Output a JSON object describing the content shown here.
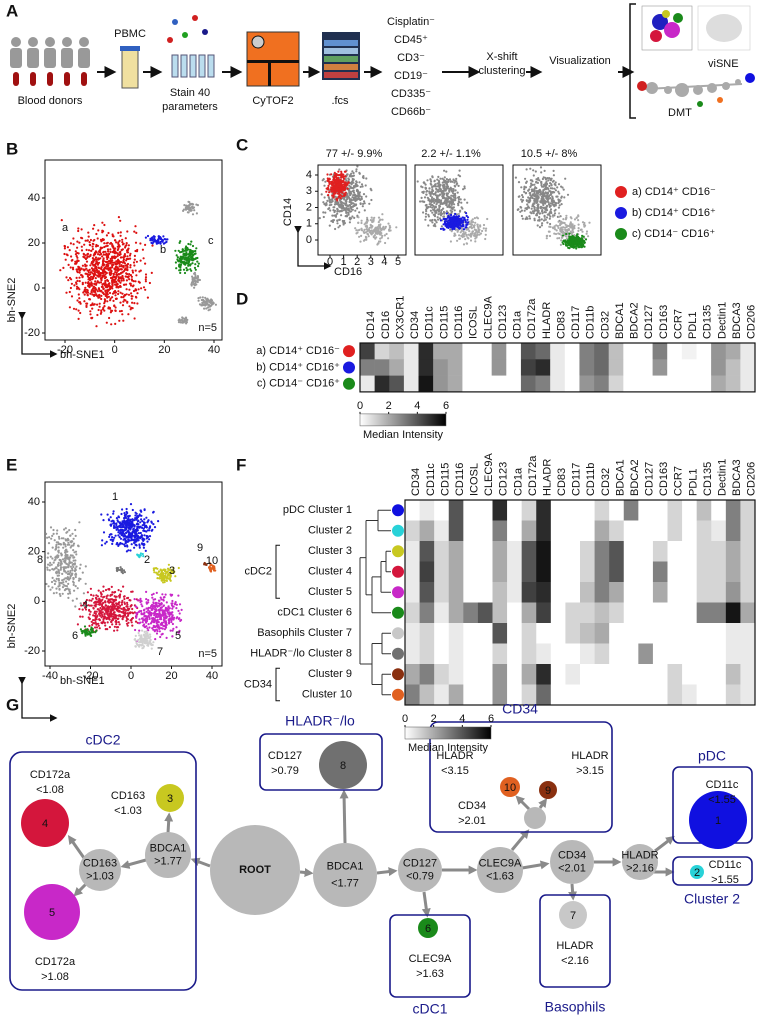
{
  "figure": {
    "A": {
      "label": "A",
      "donors": "Blood donors",
      "pbmc": "PBMC",
      "stain": [
        "Stain 40",
        "parameters"
      ],
      "cytof": "CyTOF2",
      "fcs": ".fcs",
      "gating": [
        "Cisplatin⁻",
        "CD45⁺",
        "CD3⁻",
        "CD19⁻",
        "CD335⁻",
        "CD66b⁻"
      ],
      "clustering": [
        "X-shift",
        "clustering"
      ],
      "visualization": "Visualization",
      "visne": "viSNE",
      "dmt": "DMT"
    },
    "B": {
      "label": "B",
      "x_label": "bh-SNE1",
      "y_label": "bh-SNE2",
      "xticks": [
        -20,
        0,
        20,
        40
      ],
      "yticks": [
        -20,
        0,
        20,
        40
      ],
      "note": "n=5",
      "cluster_labels": [
        "a",
        "b",
        "c"
      ]
    },
    "C": {
      "label": "C",
      "x_label": "CD16",
      "y_label": "CD14",
      "xticks": [
        0,
        1,
        2,
        3,
        4,
        5
      ],
      "yticks": [
        0,
        1,
        2,
        3,
        4
      ],
      "titles": [
        "77 +/- 9.9%",
        "2.2 +/- 1.1%",
        "10.5 +/- 8%"
      ],
      "populations": [
        {
          "name": "a) CD14⁺ CD16⁻",
          "color": "#e02020"
        },
        {
          "name": "b) CD14⁺ CD16⁺",
          "color": "#1a1ae0"
        },
        {
          "name": "c) CD14⁻ CD16⁺",
          "color": "#1a8a1a"
        }
      ]
    },
    "D": {
      "label": "D",
      "markers": [
        "CD14",
        "CD16",
        "CX3CR1",
        "CD34",
        "CD11c",
        "CD115",
        "CD116",
        "ICOSL",
        "CLEC9A",
        "CD123",
        "CD1a",
        "CD172a",
        "HLADR",
        "CD83",
        "CD117",
        "CD11b",
        "CD32",
        "BDCA1",
        "BDCA2",
        "CD127",
        "CD163",
        "CCR7",
        "PDL1",
        "CD135",
        "Dectin1",
        "BDCA3",
        "CD206"
      ],
      "rows": [
        [
          4.5,
          1,
          1.5,
          0.5,
          5,
          2,
          2,
          0,
          0,
          2.5,
          0,
          4,
          3.5,
          0.5,
          0,
          3,
          3.5,
          1.5,
          0,
          0,
          3,
          0,
          0.3,
          0,
          2.5,
          2,
          0.5
        ],
        [
          3,
          3,
          2,
          0.5,
          5,
          2.5,
          2,
          0,
          0,
          2.5,
          0,
          4.5,
          5,
          0.5,
          0,
          3,
          3.5,
          1.5,
          0,
          0,
          2.5,
          0,
          0,
          0,
          2.5,
          1.5,
          0.5
        ],
        [
          0.5,
          5,
          4,
          0.5,
          5.5,
          2.5,
          2,
          0,
          0,
          0,
          0,
          3.5,
          3,
          0.5,
          0,
          2.5,
          3,
          1,
          0,
          0,
          0,
          0,
          0,
          0,
          2,
          1.5,
          0.5
        ]
      ],
      "colorbar": {
        "ticks": [
          0,
          2,
          4,
          6
        ],
        "label": "Median Intensity"
      }
    },
    "E": {
      "label": "E",
      "x_label": "bh-SNE1",
      "y_label": "bh-SNE2",
      "xticks": [
        -40,
        -20,
        0,
        20,
        40
      ],
      "yticks": [
        -20,
        0,
        20,
        40
      ],
      "note": "n=5",
      "cluster_numbers": [
        "1",
        "2",
        "3",
        "4",
        "5",
        "6",
        "7",
        "8",
        "9",
        "10"
      ]
    },
    "F": {
      "label": "F",
      "markers": [
        "CD34",
        "CD11c",
        "CD115",
        "CD116",
        "ICOSL",
        "CLEC9A",
        "CD123",
        "CD1a",
        "CD172a",
        "HLADR",
        "CD83",
        "CD117",
        "CD11b",
        "CD32",
        "BDCA1",
        "BDCA2",
        "CD127",
        "CD163",
        "CCR7",
        "PDL1",
        "CD135",
        "Dectin1",
        "BDCA3",
        "CD206"
      ],
      "rows": [
        {
          "name": "pDC Cluster 1",
          "color": "#1010e0",
          "values": [
            0,
            0.5,
            0,
            4,
            0,
            0,
            5,
            0,
            1,
            5,
            0,
            0,
            0,
            1,
            0,
            3,
            0,
            0,
            1,
            0,
            1.5,
            0,
            3,
            1
          ]
        },
        {
          "name": "Cluster 2",
          "color": "#28d2d8",
          "values": [
            1,
            2,
            0.5,
            4,
            0,
            0,
            3,
            0,
            2,
            5,
            0,
            0,
            0,
            2,
            1,
            0,
            0,
            0,
            1,
            0,
            1,
            0.5,
            3,
            1
          ]
        },
        {
          "name": "Cluster 3",
          "color": "#c8c820",
          "values": [
            0.5,
            4,
            1,
            2,
            0,
            0,
            2,
            0.5,
            4,
            5.5,
            0,
            0,
            1,
            3,
            4,
            0,
            0,
            1,
            0,
            0,
            1,
            1,
            2,
            1
          ]
        },
        {
          "name": "Cluster 4",
          "color": "#d4163c",
          "values": [
            0.5,
            4.5,
            1,
            2,
            0,
            0,
            2,
            0.5,
            4,
            5.5,
            0,
            0,
            1,
            3,
            4,
            0,
            0,
            3,
            0,
            0,
            1,
            1,
            2,
            1
          ]
        },
        {
          "name": "Cluster 5",
          "color": "#c828c8",
          "values": [
            0.5,
            4,
            1,
            2,
            0,
            0,
            1.5,
            0.5,
            4.5,
            5,
            0,
            0,
            1.5,
            3,
            2,
            0,
            0,
            2,
            0,
            0,
            1,
            1,
            2.5,
            1
          ]
        },
        {
          "name": "cDC1 Cluster 6",
          "color": "#1a8a1a",
          "values": [
            1,
            3,
            0.5,
            2,
            3,
            4,
            1.5,
            0,
            2,
            4.5,
            0,
            1,
            1,
            1.5,
            1,
            0,
            0,
            0,
            0,
            0,
            3,
            3,
            5.5,
            2
          ]
        },
        {
          "name": "Basophils Cluster 7",
          "color": "#c8c8c8",
          "values": [
            0.5,
            1,
            0,
            0.5,
            0,
            0,
            4,
            0,
            1,
            0,
            0,
            1,
            1.5,
            2,
            0,
            0,
            0,
            0,
            0,
            0,
            0,
            0,
            0.5,
            0.5
          ]
        },
        {
          "name": "HLADR⁻/lo Cluster 8",
          "color": "#707070",
          "values": [
            0.5,
            1,
            0,
            0.5,
            0,
            0,
            1,
            0,
            1,
            0.5,
            0,
            0,
            0.5,
            1,
            0,
            0,
            2.5,
            0,
            0,
            0,
            0,
            0,
            0.5,
            0.5
          ]
        },
        {
          "name": "Cluster 9",
          "color": "#8a3010",
          "values": [
            2,
            3,
            1,
            0.5,
            0,
            0,
            2.5,
            0,
            2,
            5,
            0,
            0.5,
            0,
            0,
            0,
            0,
            0,
            0,
            1,
            0,
            0,
            0,
            1.5,
            0.5
          ]
        },
        {
          "name": "Cluster 10",
          "color": "#e06020",
          "values": [
            3,
            1.5,
            0.5,
            2,
            0,
            0,
            2.5,
            0,
            1,
            3.5,
            0,
            0,
            0,
            0,
            0,
            0,
            0,
            0,
            1,
            0.5,
            0,
            0,
            1,
            0.5
          ]
        }
      ],
      "groups": [
        "cDC2",
        "CD34"
      ],
      "colorbar": {
        "ticks": [
          0,
          2,
          4,
          6
        ],
        "label": "Median Intensity"
      }
    },
    "G": {
      "label": "G",
      "nodes": [
        [
          "ROOT"
        ],
        [
          "BDCA1",
          "<1.77"
        ],
        [
          "CD127",
          "<0.79"
        ],
        [
          "CLEC9A",
          "<1.63"
        ],
        [
          "CD34",
          "<2.01"
        ],
        [
          "HLADR",
          ">2.16"
        ],
        [
          "BDCA1",
          ">1.77"
        ],
        [
          "CD163",
          ">1.03"
        ]
      ],
      "leaves": [
        {
          "label": "1",
          "rule": [
            "CD11c",
            "<1.55"
          ]
        },
        {
          "label": "2",
          "rule": [
            "CD11c",
            ">1.55"
          ]
        },
        {
          "label": "3",
          "rule": [
            "CD163",
            "<1.03"
          ]
        },
        {
          "label": "4",
          "rule": [
            "CD172a",
            "<1.08"
          ]
        },
        {
          "label": "5",
          "rule": [
            "CD172a",
            ">1.08"
          ]
        },
        {
          "label": "6",
          "rule": [
            "CLEC9A",
            ">1.63"
          ]
        },
        {
          "label": "7",
          "rule": [
            "HLADR",
            "<2.16"
          ]
        },
        {
          "label": "8",
          "rule": [
            "CD127",
            ">0.79"
          ]
        },
        {
          "label": "9",
          "rule": [
            "HLADR",
            ">3.15"
          ]
        },
        {
          "label": "10",
          "rule": [
            "HLADR",
            "<3.15"
          ]
        }
      ],
      "inner_rule": [
        "CD34",
        ">2.01"
      ],
      "box_titles": [
        "cDC2",
        "HLADR⁻/lo",
        "CD34",
        "pDC",
        "Cluster 2",
        "cDC1",
        "Basophils"
      ]
    }
  }
}
